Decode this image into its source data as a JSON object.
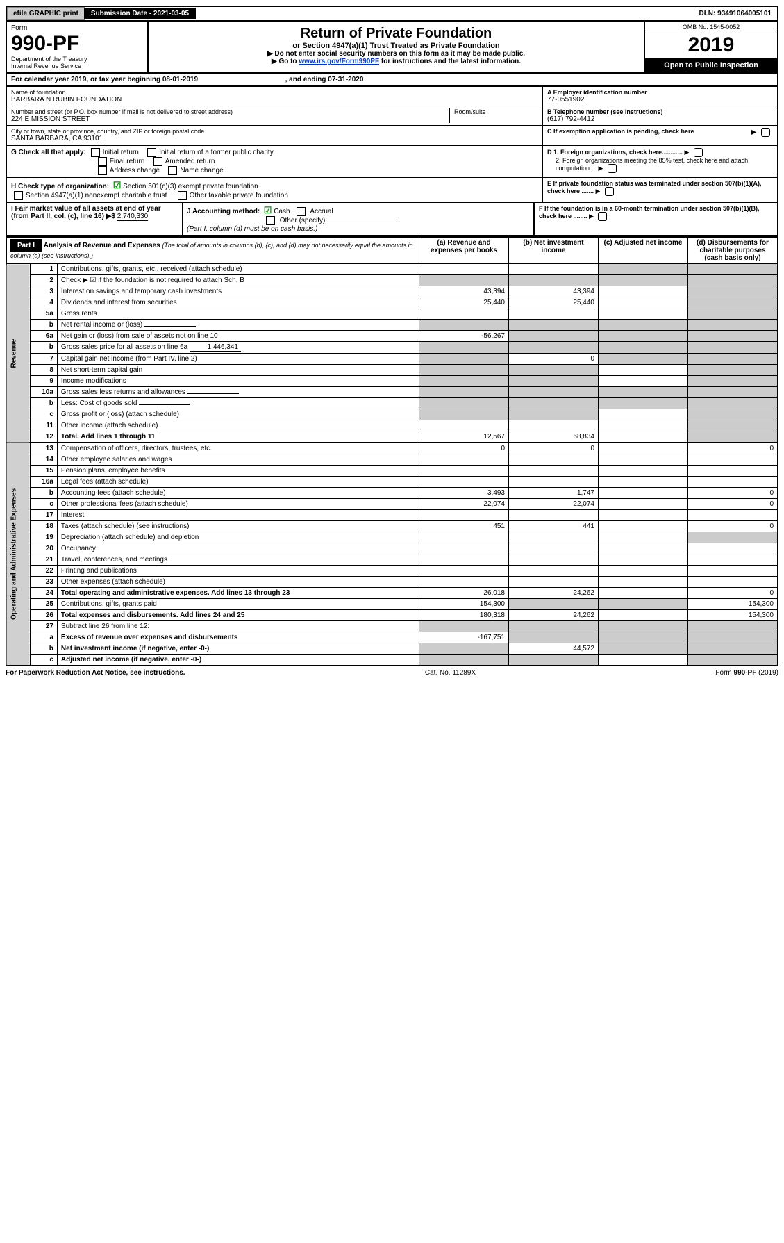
{
  "topbar": {
    "efile_label": "efile GRAPHIC print",
    "submission_label": "Submission Date - 2021-03-05",
    "dln_label": "DLN: 93491064005101"
  },
  "header": {
    "form_word": "Form",
    "form_number": "990-PF",
    "dept": "Department of the Treasury",
    "irs": "Internal Revenue Service",
    "title": "Return of Private Foundation",
    "subtitle": "or Section 4947(a)(1) Trust Treated as Private Foundation",
    "instr1": "▶ Do not enter social security numbers on this form as it may be made public.",
    "instr2_pre": "▶ Go to ",
    "instr2_link": "www.irs.gov/Form990PF",
    "instr2_post": " for instructions and the latest information.",
    "omb": "OMB No. 1545-0052",
    "year": "2019",
    "open_public": "Open to Public Inspection"
  },
  "cal": {
    "line": "For calendar year 2019, or tax year beginning 08-01-2019",
    "ending": ", and ending 07-31-2020"
  },
  "id": {
    "name_label": "Name of foundation",
    "name_value": "BARBARA N RUBIN FOUNDATION",
    "addr_label": "Number and street (or P.O. box number if mail is not delivered to street address)",
    "addr_value": "224 E MISSION STREET",
    "room_label": "Room/suite",
    "city_label": "City or town, state or province, country, and ZIP or foreign postal code",
    "city_value": "SANTA BARBARA, CA  93101",
    "a_label": "A Employer identification number",
    "a_value": "77-0551902",
    "b_label": "B Telephone number (see instructions)",
    "b_value": "(617) 792-4412",
    "c_label": "C  If exemption application is pending, check here"
  },
  "checks": {
    "g_label": "G Check all that apply:",
    "g_items": [
      "Initial return",
      "Initial return of a former public charity",
      "Final return",
      "Amended return",
      "Address change",
      "Name change"
    ],
    "h_label": "H Check type of organization:",
    "h_501c3": "Section 501(c)(3) exempt private foundation",
    "h_4947": "Section 4947(a)(1) nonexempt charitable trust",
    "h_other": "Other taxable private foundation",
    "i_label": "I Fair market value of all assets at end of year (from Part II, col. (c), line 16) ▶$",
    "i_value": "2,740,330",
    "j_label": "J Accounting method:",
    "j_cash": "Cash",
    "j_accrual": "Accrual",
    "j_other": "Other (specify)",
    "j_note": "(Part I, column (d) must be on cash basis.)",
    "d1": "D 1. Foreign organizations, check here............",
    "d2": "2. Foreign organizations meeting the 85% test, check here and attach computation ...",
    "e": "E  If private foundation status was terminated under section 507(b)(1)(A), check here .......",
    "f": "F  If the foundation is in a 60-month termination under section 507(b)(1)(B), check here ........"
  },
  "part1": {
    "label": "Part I",
    "title": "Analysis of Revenue and Expenses",
    "title_note": "(The total of amounts in columns (b), (c), and (d) may not necessarily equal the amounts in column (a) (see instructions).)",
    "col_a": "(a) Revenue and expenses per books",
    "col_b": "(b) Net investment income",
    "col_c": "(c) Adjusted net income",
    "col_d": "(d) Disbursements for charitable purposes (cash basis only)",
    "side_rev": "Revenue",
    "side_exp": "Operating and Administrative Expenses"
  },
  "rows": [
    {
      "n": "1",
      "label": "Contributions, gifts, grants, etc., received (attach schedule)",
      "a": "",
      "b": "",
      "c": "s",
      "d": "s"
    },
    {
      "n": "2",
      "label": "Check ▶ ☑ if the foundation is not required to attach Sch. B",
      "a": "s",
      "b": "s",
      "c": "s",
      "d": "s",
      "noba": true,
      "bold_parts": true
    },
    {
      "n": "3",
      "label": "Interest on savings and temporary cash investments",
      "a": "43,394",
      "b": "43,394",
      "c": "",
      "d": "s"
    },
    {
      "n": "4",
      "label": "Dividends and interest from securities",
      "a": "25,440",
      "b": "25,440",
      "c": "",
      "d": "s"
    },
    {
      "n": "5a",
      "label": "Gross rents",
      "a": "",
      "b": "",
      "c": "",
      "d": "s"
    },
    {
      "n": "b",
      "label": "Net rental income or (loss)",
      "a": "s",
      "b": "s",
      "c": "s",
      "d": "s",
      "inline": true
    },
    {
      "n": "6a",
      "label": "Net gain or (loss) from sale of assets not on line 10",
      "a": "-56,267",
      "b": "s",
      "c": "s",
      "d": "s"
    },
    {
      "n": "b",
      "label": "Gross sales price for all assets on line 6a",
      "a": "s",
      "b": "s",
      "c": "s",
      "d": "s",
      "inline": true,
      "inline_val": "1,446,341"
    },
    {
      "n": "7",
      "label": "Capital gain net income (from Part IV, line 2)",
      "a": "s",
      "b": "0",
      "c": "s",
      "d": "s"
    },
    {
      "n": "8",
      "label": "Net short-term capital gain",
      "a": "s",
      "b": "s",
      "c": "",
      "d": "s"
    },
    {
      "n": "9",
      "label": "Income modifications",
      "a": "s",
      "b": "s",
      "c": "",
      "d": "s"
    },
    {
      "n": "10a",
      "label": "Gross sales less returns and allowances",
      "a": "s",
      "b": "s",
      "c": "s",
      "d": "s",
      "inline": true
    },
    {
      "n": "b",
      "label": "Less: Cost of goods sold",
      "a": "s",
      "b": "s",
      "c": "s",
      "d": "s",
      "inline": true
    },
    {
      "n": "c",
      "label": "Gross profit or (loss) (attach schedule)",
      "a": "s",
      "b": "s",
      "c": "",
      "d": "s"
    },
    {
      "n": "11",
      "label": "Other income (attach schedule)",
      "a": "",
      "b": "",
      "c": "",
      "d": "s"
    },
    {
      "n": "12",
      "label": "Total. Add lines 1 through 11",
      "a": "12,567",
      "b": "68,834",
      "c": "",
      "d": "s",
      "bold": true
    },
    {
      "n": "13",
      "label": "Compensation of officers, directors, trustees, etc.",
      "a": "0",
      "b": "0",
      "c": "",
      "d": "0"
    },
    {
      "n": "14",
      "label": "Other employee salaries and wages",
      "a": "",
      "b": "",
      "c": "",
      "d": ""
    },
    {
      "n": "15",
      "label": "Pension plans, employee benefits",
      "a": "",
      "b": "",
      "c": "",
      "d": ""
    },
    {
      "n": "16a",
      "label": "Legal fees (attach schedule)",
      "a": "",
      "b": "",
      "c": "",
      "d": ""
    },
    {
      "n": "b",
      "label": "Accounting fees (attach schedule)",
      "a": "3,493",
      "b": "1,747",
      "c": "",
      "d": "0"
    },
    {
      "n": "c",
      "label": "Other professional fees (attach schedule)",
      "a": "22,074",
      "b": "22,074",
      "c": "",
      "d": "0"
    },
    {
      "n": "17",
      "label": "Interest",
      "a": "",
      "b": "",
      "c": "",
      "d": ""
    },
    {
      "n": "18",
      "label": "Taxes (attach schedule) (see instructions)",
      "a": "451",
      "b": "441",
      "c": "",
      "d": "0"
    },
    {
      "n": "19",
      "label": "Depreciation (attach schedule) and depletion",
      "a": "",
      "b": "",
      "c": "",
      "d": "s"
    },
    {
      "n": "20",
      "label": "Occupancy",
      "a": "",
      "b": "",
      "c": "",
      "d": ""
    },
    {
      "n": "21",
      "label": "Travel, conferences, and meetings",
      "a": "",
      "b": "",
      "c": "",
      "d": ""
    },
    {
      "n": "22",
      "label": "Printing and publications",
      "a": "",
      "b": "",
      "c": "",
      "d": ""
    },
    {
      "n": "23",
      "label": "Other expenses (attach schedule)",
      "a": "",
      "b": "",
      "c": "",
      "d": ""
    },
    {
      "n": "24",
      "label": "Total operating and administrative expenses. Add lines 13 through 23",
      "a": "26,018",
      "b": "24,262",
      "c": "",
      "d": "0",
      "bold": true
    },
    {
      "n": "25",
      "label": "Contributions, gifts, grants paid",
      "a": "154,300",
      "b": "s",
      "c": "s",
      "d": "154,300"
    },
    {
      "n": "26",
      "label": "Total expenses and disbursements. Add lines 24 and 25",
      "a": "180,318",
      "b": "24,262",
      "c": "",
      "d": "154,300",
      "bold": true
    },
    {
      "n": "27",
      "label": "Subtract line 26 from line 12:",
      "a": "s",
      "b": "s",
      "c": "s",
      "d": "s"
    },
    {
      "n": "a",
      "label": "Excess of revenue over expenses and disbursements",
      "a": "-167,751",
      "b": "s",
      "c": "s",
      "d": "s",
      "bold": true
    },
    {
      "n": "b",
      "label": "Net investment income (if negative, enter -0-)",
      "a": "s",
      "b": "44,572",
      "c": "s",
      "d": "s",
      "bold": true
    },
    {
      "n": "c",
      "label": "Adjusted net income (if negative, enter -0-)",
      "a": "s",
      "b": "s",
      "c": "",
      "d": "s",
      "bold": true
    }
  ],
  "footer": {
    "left": "For Paperwork Reduction Act Notice, see instructions.",
    "mid": "Cat. No. 11289X",
    "right": "Form 990-PF (2019)"
  },
  "colors": {
    "link": "#0038c8",
    "check_green": "#0a8a0a",
    "shaded": "#cccccc"
  }
}
